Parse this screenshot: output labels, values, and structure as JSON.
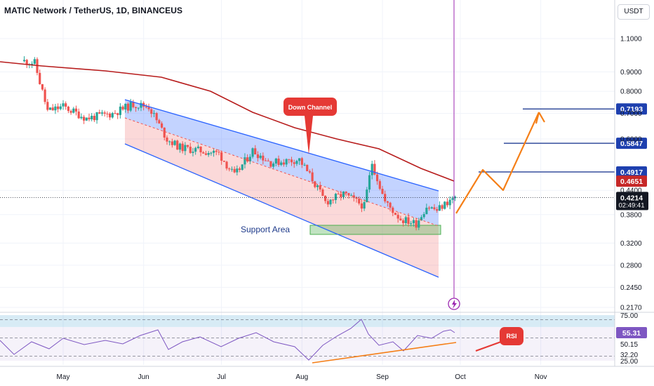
{
  "header": {
    "title": "MATIC Network / TetherUS, 1D, BINANCEUS",
    "currency_button": "USDT"
  },
  "colors": {
    "bull": "#26a69a",
    "bear": "#ef5350",
    "ma": "#b71c1c",
    "channel": "#2962ff",
    "projection": "#f57f17",
    "rsi_line": "#7e57c2",
    "support": "#4caf50"
  },
  "chart_data": {
    "type": "candlestick",
    "title": "MATIC Network / TetherUS, 1D, BINANCEUS",
    "y_scale": "log",
    "ylim": [
      0.205,
      1.2
    ],
    "price_ticks": [
      "1.1000",
      "0.9000",
      "0.8000",
      "0.7000",
      "0.6000",
      "0.4400",
      "0.3800",
      "0.3200",
      "0.2800",
      "0.2450",
      "0.2170"
    ],
    "time_ticks": [
      "May",
      "Jun",
      "Jul",
      "Aug",
      "Sep",
      "Oct",
      "Nov"
    ],
    "grid": true,
    "current_price": "0.4214",
    "countdown": "02:49:41",
    "ma_value": "0.4651",
    "target_levels": [
      "0.4917",
      "0.5847",
      "0.7193"
    ],
    "annotations": {
      "down_channel": "Down Channel",
      "support_area": "Support Area",
      "rsi": "RSI"
    },
    "price_series": [
      {
        "date": "2023-04-16",
        "close": 0.96
      },
      {
        "date": "2023-04-20",
        "close": 0.95
      },
      {
        "date": "2023-04-25",
        "close": 0.71
      },
      {
        "date": "2023-05-01",
        "close": 0.73
      },
      {
        "date": "2023-05-10",
        "close": 0.68
      },
      {
        "date": "2023-05-20",
        "close": 0.7
      },
      {
        "date": "2023-05-28",
        "close": 0.74
      },
      {
        "date": "2023-06-03",
        "close": 0.73
      },
      {
        "date": "2023-06-10",
        "close": 0.6
      },
      {
        "date": "2023-06-15",
        "close": 0.57
      },
      {
        "date": "2023-06-22",
        "close": 0.56
      },
      {
        "date": "2023-06-30",
        "close": 0.55
      },
      {
        "date": "2023-07-06",
        "close": 0.48
      },
      {
        "date": "2023-07-13",
        "close": 0.56
      },
      {
        "date": "2023-07-20",
        "close": 0.52
      },
      {
        "date": "2023-07-31",
        "close": 0.53
      },
      {
        "date": "2023-08-05",
        "close": 0.47
      },
      {
        "date": "2023-08-10",
        "close": 0.41
      },
      {
        "date": "2023-08-17",
        "close": 0.43
      },
      {
        "date": "2023-08-25",
        "close": 0.4
      },
      {
        "date": "2023-08-28",
        "close": 0.52
      },
      {
        "date": "2023-09-02",
        "close": 0.41
      },
      {
        "date": "2023-09-08",
        "close": 0.37
      },
      {
        "date": "2023-09-14",
        "close": 0.36
      },
      {
        "date": "2023-09-18",
        "close": 0.4
      },
      {
        "date": "2023-09-22",
        "close": 0.39
      },
      {
        "date": "2023-09-26",
        "close": 0.41
      },
      {
        "date": "2023-09-29",
        "close": 0.4214
      }
    ],
    "rsi": {
      "levels": [
        "75.00",
        "50.15",
        "32.20",
        "25.00"
      ],
      "current": "55.31"
    }
  }
}
